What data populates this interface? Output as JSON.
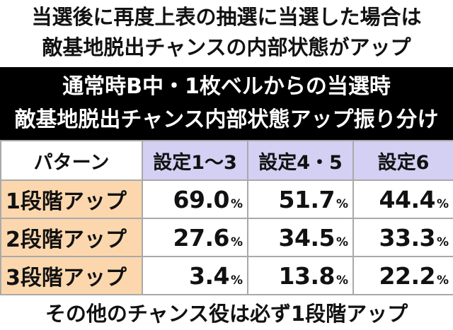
{
  "intro": {
    "line1": "当選後に再度上表の抽選に当選した場合は",
    "line2": "敵基地脱出チャンスの内部状態がアップ"
  },
  "banner": {
    "line1": "通常時B中・1枚ベルからの当選時",
    "line2": "敵基地脱出チャンス内部状態アップ振り分け"
  },
  "table": {
    "headers": [
      "パターン",
      "設定1～3",
      "設定4・5",
      "設定6"
    ],
    "rows": [
      {
        "label": "1段階アップ",
        "values": [
          "69.0",
          "51.7",
          "44.4"
        ]
      },
      {
        "label": "2段階アップ",
        "values": [
          "27.6",
          "34.5",
          "33.3"
        ]
      },
      {
        "label": "3段階アップ",
        "values": [
          "3.4",
          "13.8",
          "22.2"
        ]
      }
    ],
    "unit": "%"
  },
  "footer": {
    "text": "その他のチャンス役は必ず1段階アップ"
  },
  "colors": {
    "banner_bg": "#000000",
    "header_setting_bg": "#d3d0f4",
    "row_label_bg": "#fcd7ae",
    "grid": "#a9a9a9"
  }
}
